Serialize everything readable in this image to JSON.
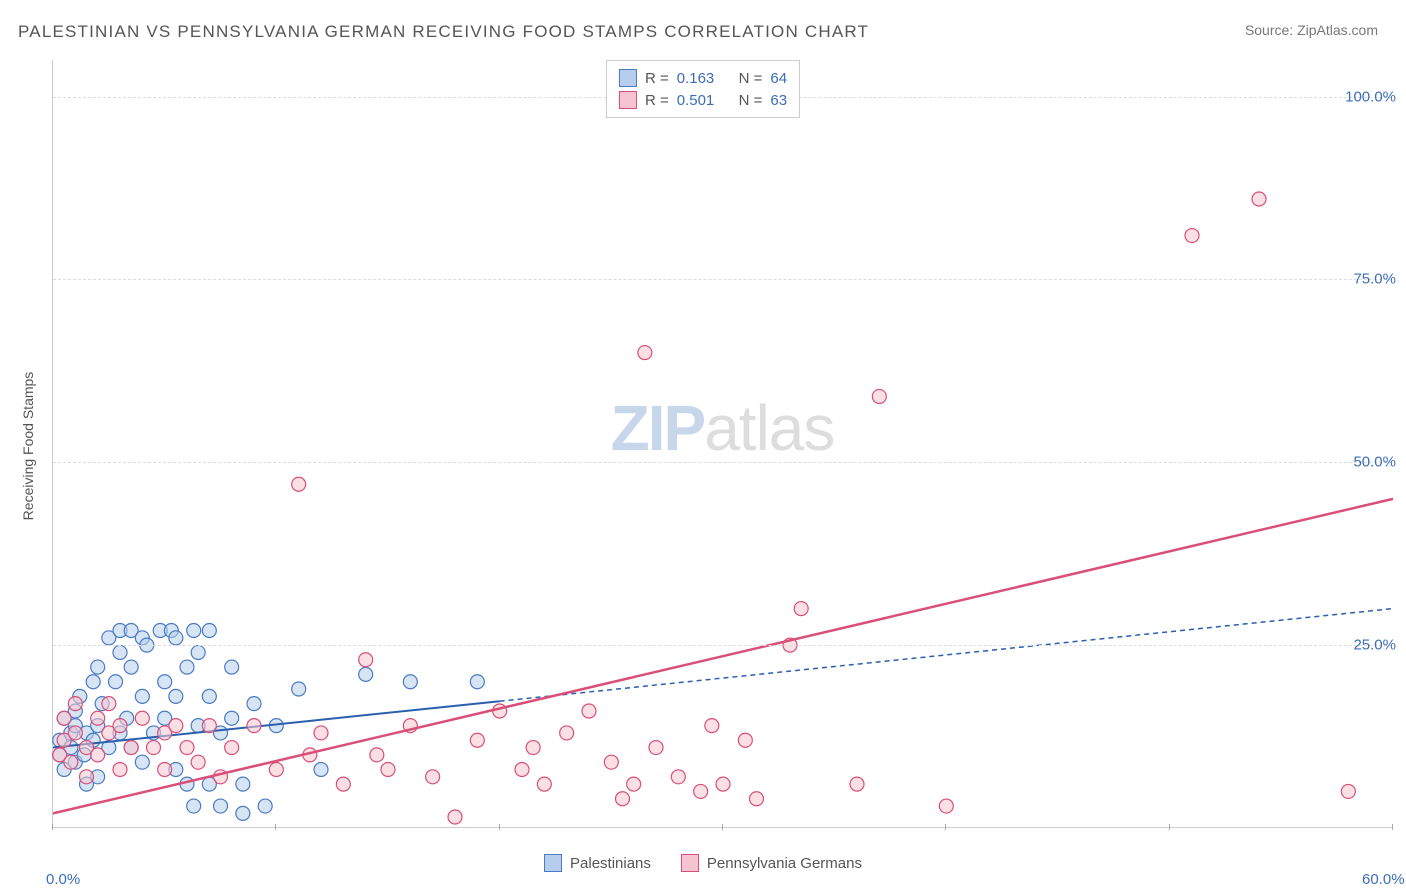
{
  "title": "PALESTINIAN VS PENNSYLVANIA GERMAN RECEIVING FOOD STAMPS CORRELATION CHART",
  "source_label": "Source: ",
  "source_value": "ZipAtlas.com",
  "ylabel": "Receiving Food Stamps",
  "watermark_zip": "ZIP",
  "watermark_atlas": "atlas",
  "chart": {
    "type": "scatter",
    "xlim": [
      0,
      60
    ],
    "ylim": [
      0,
      105
    ],
    "xtick_positions": [
      0,
      10,
      20,
      30,
      40,
      50,
      60
    ],
    "xtick_labels": {
      "0": "0.0%",
      "60": "60.0%"
    },
    "ytick_positions": [
      25,
      50,
      75,
      100
    ],
    "ytick_labels": {
      "25": "25.0%",
      "50": "50.0%",
      "75": "75.0%",
      "100": "100.0%"
    },
    "grid_color": "#dddddd",
    "background_color": "#ffffff",
    "marker_radius": 7,
    "marker_stroke_width": 1.2,
    "series": [
      {
        "key": "palestinians",
        "label": "Palestinians",
        "fill": "#b6cdeb",
        "stroke": "#4a7bc5",
        "fill_opacity": 0.55,
        "R": "0.163",
        "N": "64",
        "trend": {
          "x1": 0,
          "y1": 11,
          "x2": 60,
          "y2": 30,
          "solid_until_x": 20,
          "color": "#2a5fb0",
          "width": 2,
          "dash": "5,4"
        },
        "points": [
          [
            0.3,
            10
          ],
          [
            0.3,
            12
          ],
          [
            0.5,
            15
          ],
          [
            0.5,
            8
          ],
          [
            0.8,
            13
          ],
          [
            0.8,
            11
          ],
          [
            1,
            14
          ],
          [
            1,
            9
          ],
          [
            1,
            16
          ],
          [
            1.2,
            18
          ],
          [
            1.4,
            10
          ],
          [
            1.5,
            6
          ],
          [
            1.5,
            13
          ],
          [
            1.8,
            20
          ],
          [
            1.8,
            12
          ],
          [
            2,
            14
          ],
          [
            2,
            22
          ],
          [
            2,
            7
          ],
          [
            2.2,
            17
          ],
          [
            2.5,
            11
          ],
          [
            2.5,
            26
          ],
          [
            2.8,
            20
          ],
          [
            3,
            13
          ],
          [
            3,
            24
          ],
          [
            3,
            27
          ],
          [
            3.3,
            15
          ],
          [
            3.5,
            22
          ],
          [
            3.5,
            27
          ],
          [
            3.5,
            11
          ],
          [
            4,
            26
          ],
          [
            4,
            18
          ],
          [
            4,
            9
          ],
          [
            4.2,
            25
          ],
          [
            4.5,
            13
          ],
          [
            4.8,
            27
          ],
          [
            5,
            20
          ],
          [
            5,
            15
          ],
          [
            5.3,
            27
          ],
          [
            5.5,
            26
          ],
          [
            5.5,
            18
          ],
          [
            5.5,
            8
          ],
          [
            6,
            22
          ],
          [
            6,
            6
          ],
          [
            6.3,
            27
          ],
          [
            6.3,
            3
          ],
          [
            6.5,
            24
          ],
          [
            6.5,
            14
          ],
          [
            7,
            18
          ],
          [
            7,
            27
          ],
          [
            7,
            6
          ],
          [
            7.5,
            13
          ],
          [
            7.5,
            3
          ],
          [
            8,
            22
          ],
          [
            8,
            15
          ],
          [
            8.5,
            6
          ],
          [
            8.5,
            2
          ],
          [
            9,
            17
          ],
          [
            9.5,
            3
          ],
          [
            10,
            14
          ],
          [
            11,
            19
          ],
          [
            12,
            8
          ],
          [
            14,
            21
          ],
          [
            16,
            20
          ],
          [
            19,
            20
          ]
        ]
      },
      {
        "key": "pa_germans",
        "label": "Pennsylvania Germans",
        "fill": "#f5c4d0",
        "stroke": "#d94f78",
        "fill_opacity": 0.55,
        "R": "0.501",
        "N": "63",
        "trend": {
          "x1": 0,
          "y1": 2,
          "x2": 60,
          "y2": 45,
          "solid_until_x": 60,
          "color": "#d94f78",
          "width": 2.5,
          "dash": null
        },
        "points": [
          [
            0.3,
            10
          ],
          [
            0.5,
            12
          ],
          [
            0.5,
            15
          ],
          [
            0.8,
            9
          ],
          [
            1,
            13
          ],
          [
            1,
            17
          ],
          [
            1.5,
            11
          ],
          [
            1.5,
            7
          ],
          [
            2,
            15
          ],
          [
            2,
            10
          ],
          [
            2.5,
            13
          ],
          [
            2.5,
            17
          ],
          [
            3,
            8
          ],
          [
            3,
            14
          ],
          [
            3.5,
            11
          ],
          [
            4,
            15
          ],
          [
            4.5,
            11
          ],
          [
            5,
            13
          ],
          [
            5,
            8
          ],
          [
            5.5,
            14
          ],
          [
            6,
            11
          ],
          [
            6.5,
            9
          ],
          [
            7,
            14
          ],
          [
            7.5,
            7
          ],
          [
            8,
            11
          ],
          [
            9,
            14
          ],
          [
            10,
            8
          ],
          [
            11,
            47
          ],
          [
            11.5,
            10
          ],
          [
            12,
            13
          ],
          [
            13,
            6
          ],
          [
            14,
            23
          ],
          [
            14.5,
            10
          ],
          [
            15,
            8
          ],
          [
            16,
            14
          ],
          [
            17,
            7
          ],
          [
            18,
            1.5
          ],
          [
            19,
            12
          ],
          [
            20,
            16
          ],
          [
            21,
            8
          ],
          [
            21.5,
            11
          ],
          [
            22,
            6
          ],
          [
            23,
            13
          ],
          [
            24,
            16
          ],
          [
            25,
            9
          ],
          [
            25.5,
            4
          ],
          [
            26,
            6
          ],
          [
            26.5,
            65
          ],
          [
            27,
            11
          ],
          [
            28,
            7
          ],
          [
            29,
            5
          ],
          [
            29.5,
            14
          ],
          [
            30,
            6
          ],
          [
            31,
            12
          ],
          [
            31.5,
            4
          ],
          [
            33,
            25
          ],
          [
            33.5,
            30
          ],
          [
            36,
            6
          ],
          [
            37,
            59
          ],
          [
            40,
            3
          ],
          [
            51,
            81
          ],
          [
            54,
            86
          ],
          [
            58,
            5
          ]
        ]
      }
    ]
  },
  "legend_top": {
    "R_label": "R =",
    "N_label": "N ="
  }
}
